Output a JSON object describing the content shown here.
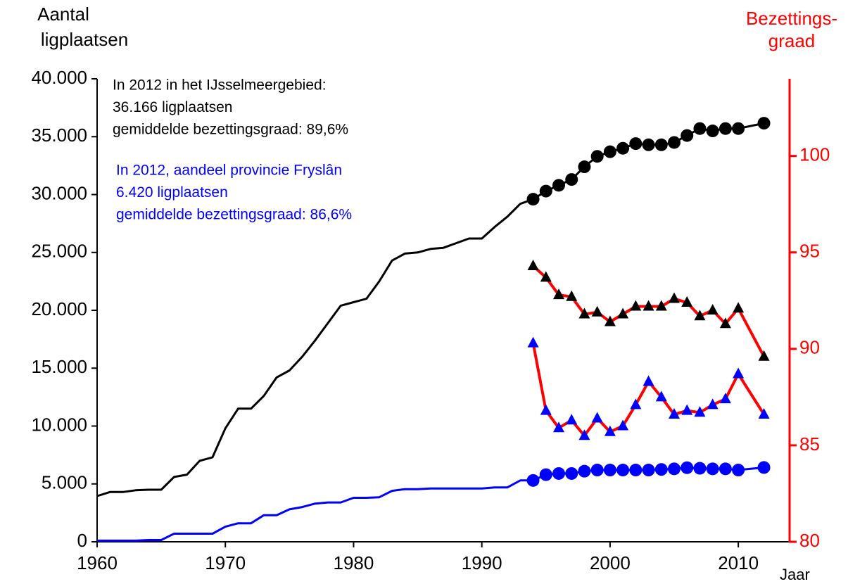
{
  "chart_data": {
    "type": "line",
    "y_label": [
      "Aantal",
      "ligplaatsen"
    ],
    "y2_label": [
      "Bezettings-",
      "graad"
    ],
    "x_label": "Jaar",
    "annotations": [
      {
        "lines": [
          "In 2012 in het IJsselmeergebied:",
          "36.166 ligplaatsen",
          "gemiddelde bezettingsgraad: 89,6%"
        ],
        "color": "#000000"
      },
      {
        "lines": [
          "In 2012, aandeel provincie Fryslân",
          "6.420 ligplaatsen",
          "gemiddelde bezettingsgraad: 86,6%"
        ],
        "color": "#0000ff"
      }
    ],
    "xlim": [
      1960,
      2014
    ],
    "xticks": [
      1960,
      1970,
      1980,
      1990,
      2000,
      2010
    ],
    "ylim": [
      0,
      40000
    ],
    "yticks": [
      0,
      {
        "value": 5000,
        "label": "5.000"
      },
      {
        "value": 10000,
        "label": "10.000"
      },
      {
        "value": 15000,
        "label": "15.000"
      },
      {
        "value": 20000,
        "label": "20.000"
      },
      {
        "value": 25000,
        "label": "25.000"
      },
      {
        "value": 30000,
        "label": "30.000"
      },
      {
        "value": 35000,
        "label": "35.000"
      },
      {
        "value": 40000,
        "label": "40.000"
      }
    ],
    "y2lim": [
      80,
      104
    ],
    "y2ticks": [
      80,
      85,
      90,
      95,
      100
    ],
    "y2_color": "#ff0000",
    "series": [
      {
        "color": "#000000",
        "x": [
          1960,
          1961,
          1962,
          1963,
          1964,
          1965,
          1966,
          1967,
          1968,
          1969,
          1970,
          1971,
          1972,
          1973,
          1974,
          1975,
          1976,
          1977,
          1978,
          1979,
          1980,
          1981,
          1982,
          1983,
          1984,
          1985,
          1986,
          1987,
          1988,
          1989,
          1990,
          1991,
          1992,
          1993,
          1994
        ],
        "values": [
          3950,
          4300,
          4300,
          4450,
          4500,
          4500,
          5600,
          5800,
          7000,
          7300,
          9800,
          11500,
          11500,
          12600,
          14200,
          14800,
          16000,
          17400,
          18900,
          20400,
          20700,
          21000,
          22500,
          24300,
          24900,
          25000,
          25300,
          25400,
          25800,
          26200,
          26200,
          27200,
          28100,
          29200,
          29600
        ]
      },
      {
        "color": "#000000",
        "marker": "circle",
        "marker_color": "#000000",
        "x": [
          1994,
          1995,
          1996,
          1997,
          1998,
          1999,
          2000,
          2001,
          2002,
          2003,
          2004,
          2005,
          2006,
          2007,
          2008,
          2009,
          2010,
          2012
        ],
        "values": [
          29600,
          30300,
          30800,
          31300,
          32400,
          33300,
          33700,
          34000,
          34400,
          34300,
          34300,
          34500,
          35100,
          35700,
          35500,
          35700,
          35700,
          36166
        ]
      },
      {
        "color": "#0000ff",
        "x": [
          1960,
          1961,
          1962,
          1963,
          1964,
          1965,
          1966,
          1967,
          1968,
          1969,
          1970,
          1971,
          1972,
          1973,
          1974,
          1975,
          1976,
          1977,
          1978,
          1979,
          1980,
          1981,
          1982,
          1983,
          1984,
          1985,
          1986,
          1987,
          1988,
          1989,
          1990,
          1991,
          1992,
          1993,
          1994
        ],
        "values": [
          100,
          100,
          100,
          100,
          150,
          150,
          700,
          700,
          700,
          700,
          1300,
          1600,
          1600,
          2300,
          2300,
          2800,
          3000,
          3300,
          3400,
          3400,
          3800,
          3800,
          3850,
          4400,
          4550,
          4550,
          4600,
          4600,
          4600,
          4600,
          4600,
          4700,
          4700,
          5300,
          5300
        ]
      },
      {
        "color": "#0000ff",
        "marker": "circle",
        "marker_color": "#0000ff",
        "x": [
          1994,
          1995,
          1996,
          1997,
          1998,
          1999,
          2000,
          2001,
          2002,
          2003,
          2004,
          2005,
          2006,
          2007,
          2008,
          2009,
          2010,
          2012
        ],
        "values": [
          5300,
          5800,
          5900,
          5900,
          6100,
          6200,
          6200,
          6200,
          6200,
          6200,
          6250,
          6300,
          6400,
          6350,
          6300,
          6300,
          6200,
          6420
        ]
      },
      {
        "color": "#ff0000",
        "axis": "y2",
        "marker": "triangle",
        "marker_color": "#000000",
        "x": [
          1994,
          1995,
          1996,
          1997,
          1998,
          1999,
          2000,
          2001,
          2002,
          2003,
          2004,
          2005,
          2006,
          2007,
          2008,
          2009,
          2010,
          2012
        ],
        "values": [
          94.3,
          93.7,
          92.8,
          92.7,
          91.8,
          91.9,
          91.4,
          91.8,
          92.2,
          92.2,
          92.2,
          92.6,
          92.4,
          91.7,
          92.0,
          91.3,
          92.1,
          89.6
        ]
      },
      {
        "color": "#ff0000",
        "axis": "y2",
        "marker": "triangle",
        "marker_color": "#0000ff",
        "x": [
          1994,
          1995,
          1996,
          1997,
          1998,
          1999,
          2000,
          2001,
          2002,
          2003,
          2004,
          2005,
          2006,
          2007,
          2008,
          2009,
          2010,
          2012
        ],
        "values": [
          90.3,
          86.8,
          85.9,
          86.3,
          85.5,
          86.4,
          85.7,
          86.0,
          87.1,
          88.3,
          87.5,
          86.6,
          86.8,
          86.7,
          87.1,
          87.4,
          88.7,
          86.6
        ]
      }
    ]
  }
}
